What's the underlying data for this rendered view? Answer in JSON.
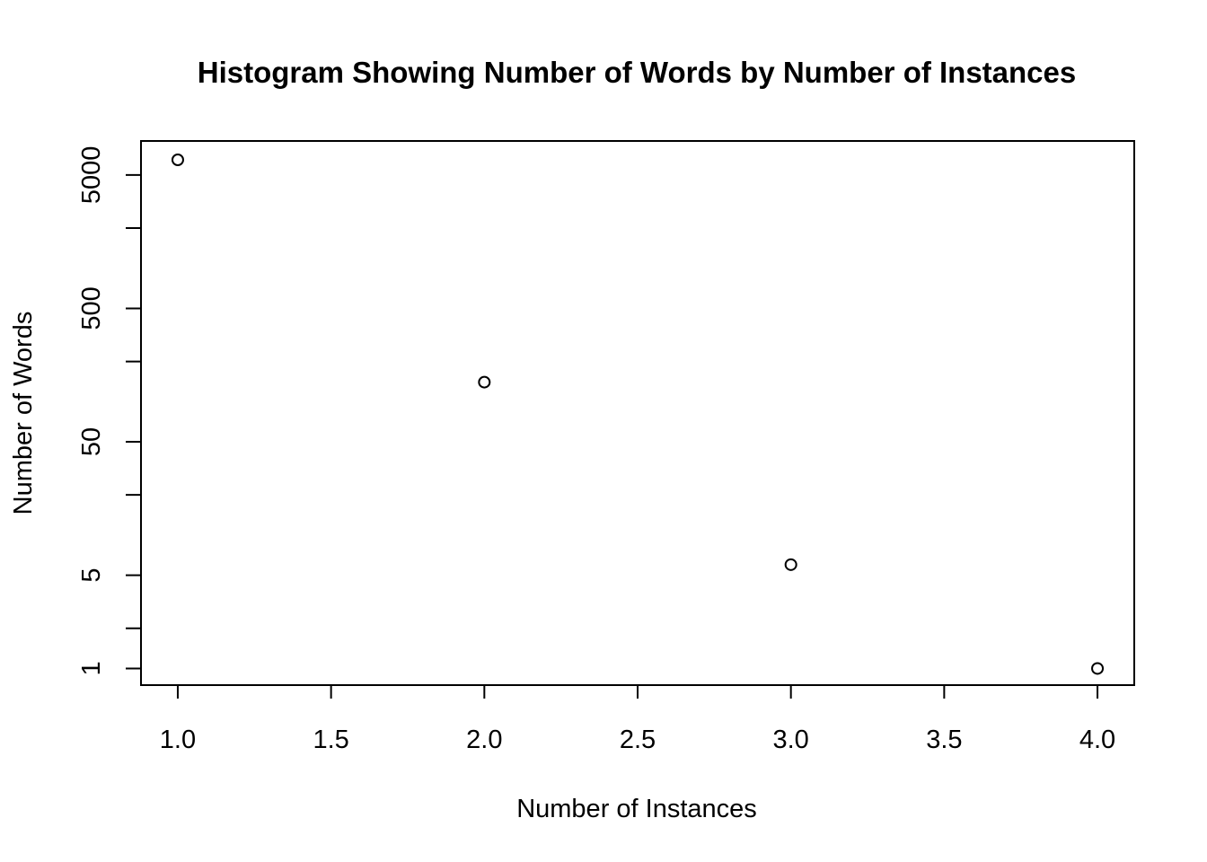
{
  "chart_data": {
    "type": "scatter",
    "title": "Histogram Showing Number of Words by Number of Instances",
    "xlabel": "Number of Instances",
    "ylabel": "Number of Words",
    "x_scale": "linear",
    "y_scale": "log",
    "xlim": [
      0.88,
      4.12
    ],
    "ylim": [
      0.75,
      9000
    ],
    "x_ticks": [
      {
        "value": 1.0,
        "label": "1.0"
      },
      {
        "value": 1.5,
        "label": "1.5"
      },
      {
        "value": 2.0,
        "label": "2.0"
      },
      {
        "value": 2.5,
        "label": "2.5"
      },
      {
        "value": 3.0,
        "label": "3.0"
      },
      {
        "value": 3.5,
        "label": "3.5"
      },
      {
        "value": 4.0,
        "label": "4.0"
      }
    ],
    "y_ticks": [
      {
        "value": 1,
        "label": "1"
      },
      {
        "value": 2,
        "label": ""
      },
      {
        "value": 5,
        "label": "5"
      },
      {
        "value": 20,
        "label": ""
      },
      {
        "value": 50,
        "label": "50"
      },
      {
        "value": 200,
        "label": ""
      },
      {
        "value": 500,
        "label": "500"
      },
      {
        "value": 2000,
        "label": ""
      },
      {
        "value": 5000,
        "label": "5000"
      }
    ],
    "x": [
      1,
      2,
      3,
      4
    ],
    "y": [
      6500,
      140,
      6,
      1
    ],
    "marker": "open-circle",
    "grid": false,
    "legend": "none"
  }
}
